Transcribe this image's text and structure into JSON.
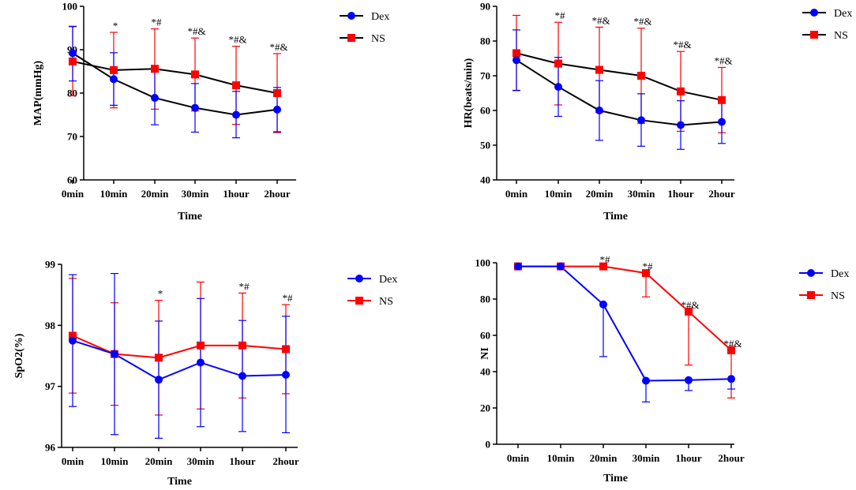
{
  "chart_data": [
    {
      "type": "line",
      "title": "",
      "xlabel": "Time",
      "ylabel": "MAP(mmHg)",
      "categories": [
        "0min",
        "10min",
        "20min",
        "30min",
        "1hour",
        "2hour"
      ],
      "ylim": [
        60,
        100
      ],
      "yticks": [
        "60",
        "70",
        "80",
        "90",
        "100"
      ],
      "legend_position": "top-right",
      "series": [
        {
          "name": "Dex",
          "color": "#0000ff",
          "line_color": "#000000",
          "marker": "circle",
          "values": [
            89.2,
            83.2,
            78.9,
            76.6,
            75.0,
            76.2
          ],
          "err_upper": [
            95.4,
            89.3,
            85.1,
            82.2,
            80.4,
            81.3
          ],
          "err_lower": [
            82.8,
            77.2,
            72.7,
            71.0,
            69.7,
            71.1
          ]
        },
        {
          "name": "NS",
          "color": "#ff0000",
          "line_color": "#000000",
          "marker": "square",
          "values": [
            87.3,
            85.3,
            85.6,
            84.3,
            81.8,
            80.0
          ],
          "err_upper": [
            95.3,
            94.0,
            94.8,
            92.7,
            90.8,
            89.1
          ],
          "err_lower": [
            79.4,
            76.6,
            76.3,
            75.9,
            72.8,
            70.9
          ]
        }
      ],
      "annotations": [
        "",
        "*",
        "*#",
        "*#&",
        "*#&",
        "*#&"
      ]
    },
    {
      "type": "line",
      "title": "",
      "xlabel": "Time",
      "ylabel": "HR(beats/min)",
      "categories": [
        "0min",
        "10min",
        "20min",
        "30min",
        "1hour",
        "2hour"
      ],
      "ylim": [
        40,
        90
      ],
      "yticks": [
        "40",
        "50",
        "60",
        "70",
        "80",
        "90"
      ],
      "legend_position": "top-right",
      "series": [
        {
          "name": "Dex",
          "color": "#0000ff",
          "line_color": "#000000",
          "marker": "circle",
          "values": [
            74.5,
            66.8,
            60.0,
            57.2,
            55.8,
            56.7
          ],
          "err_upper": [
            83.2,
            75.3,
            68.6,
            64.8,
            62.8,
            63.0
          ],
          "err_lower": [
            65.8,
            58.3,
            51.4,
            49.7,
            48.8,
            50.5
          ]
        },
        {
          "name": "NS",
          "color": "#ff0000",
          "line_color": "#000000",
          "marker": "square",
          "values": [
            76.5,
            73.5,
            71.7,
            70.0,
            65.5,
            63.0
          ],
          "err_upper": [
            87.4,
            85.4,
            84.0,
            83.7,
            77.0,
            72.4
          ],
          "err_lower": [
            65.7,
            61.6,
            59.4,
            56.3,
            54.0,
            53.6
          ]
        }
      ],
      "annotations": [
        "",
        "*#",
        "*#&",
        "*#&",
        "*#&",
        "*#&"
      ]
    },
    {
      "type": "line",
      "title": "",
      "xlabel": "Time",
      "ylabel": "SpO2(%)",
      "categories": [
        "0min",
        "10min",
        "20min",
        "30min",
        "1hour",
        "2hour"
      ],
      "ylim": [
        96,
        99
      ],
      "yticks": [
        "96",
        "97",
        "98",
        "99"
      ],
      "legend_position": "right",
      "series": [
        {
          "name": "Dex",
          "color": "#0000ff",
          "line_color": "#0000ff",
          "marker": "circle",
          "values": [
            97.75,
            97.53,
            97.11,
            97.39,
            97.17,
            97.19
          ],
          "err_upper": [
            98.83,
            98.85,
            98.07,
            98.44,
            98.08,
            98.15
          ],
          "err_lower": [
            96.67,
            96.21,
            96.15,
            96.34,
            96.26,
            96.24
          ]
        },
        {
          "name": "NS",
          "color": "#ff0000",
          "line_color": "#ff0000",
          "marker": "square",
          "values": [
            97.83,
            97.53,
            97.47,
            97.67,
            97.67,
            97.61
          ],
          "err_upper": [
            98.77,
            98.37,
            98.41,
            98.71,
            98.53,
            98.34
          ],
          "err_lower": [
            96.89,
            96.69,
            96.53,
            96.63,
            96.81,
            96.88
          ]
        }
      ],
      "annotations": [
        "",
        "",
        "*",
        "",
        "*#",
        "*#"
      ]
    },
    {
      "type": "line",
      "title": "",
      "xlabel": "Time",
      "ylabel": "NI",
      "categories": [
        "0min",
        "10min",
        "20min",
        "30min",
        "1hour",
        "2hour"
      ],
      "ylim": [
        0,
        100
      ],
      "yticks": [
        "0",
        "20",
        "40",
        "60",
        "80",
        "100"
      ],
      "legend_position": "right",
      "series": [
        {
          "name": "Dex",
          "color": "#0000ff",
          "line_color": "#0000ff",
          "marker": "circle",
          "values": [
            98,
            98,
            77,
            35,
            35.3,
            36
          ],
          "err_upper": [
            98,
            98,
            77,
            35,
            35.3,
            36
          ],
          "err_lower": [
            98,
            98,
            48.3,
            23.3,
            29.6,
            30.4
          ]
        },
        {
          "name": "NS",
          "color": "#ff0000",
          "line_color": "#ff0000",
          "marker": "square",
          "values": [
            98,
            98,
            98,
            94.3,
            73.1,
            51.8
          ],
          "err_upper": [
            98,
            98,
            98,
            94.3,
            73.1,
            51.8
          ],
          "err_lower": [
            98,
            98,
            98,
            81.2,
            43.6,
            25.5
          ]
        }
      ],
      "annotations": [
        "",
        "",
        "*#",
        "*#",
        "*#&",
        "*#&"
      ]
    }
  ]
}
